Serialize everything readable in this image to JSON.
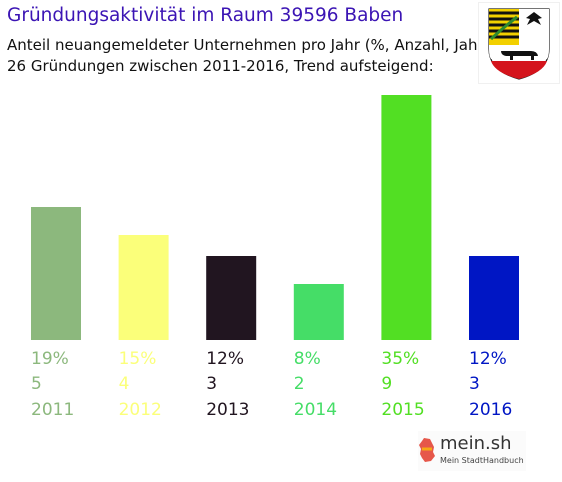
{
  "title": "Gründungsaktivität im Raum 39596 Baben",
  "subtitle_line1": "Anteil neuangemeldeter Unternehmen pro Jahr (%, Anzahl, Jahr)",
  "subtitle_line2": "26 Gründungen zwischen 2011-2016, Trend aufsteigend:",
  "crest_icon": "sachsen-anhalt-coat-of-arms-icon",
  "logo": {
    "main": "mein.sh",
    "sub": "Mein StadtHandbuch",
    "icon": "germany-map-icon"
  },
  "chart_data": {
    "type": "bar",
    "title": "",
    "xlabel": "",
    "ylabel": "",
    "categories": [
      "2011",
      "2012",
      "2013",
      "2014",
      "2015",
      "2016"
    ],
    "values": [
      19,
      15,
      12,
      8,
      35,
      12
    ],
    "percent_labels": [
      "19%",
      "15%",
      "12%",
      "8%",
      "35%",
      "12%"
    ],
    "counts": [
      "5",
      "4",
      "3",
      "2",
      "9",
      "3"
    ],
    "colors": [
      "#8cb87d",
      "#fbff7a",
      "#211520",
      "#45dd67",
      "#52df23",
      "#0016c4"
    ],
    "ylim": [
      0,
      35
    ],
    "grid": false,
    "legend": "none"
  }
}
